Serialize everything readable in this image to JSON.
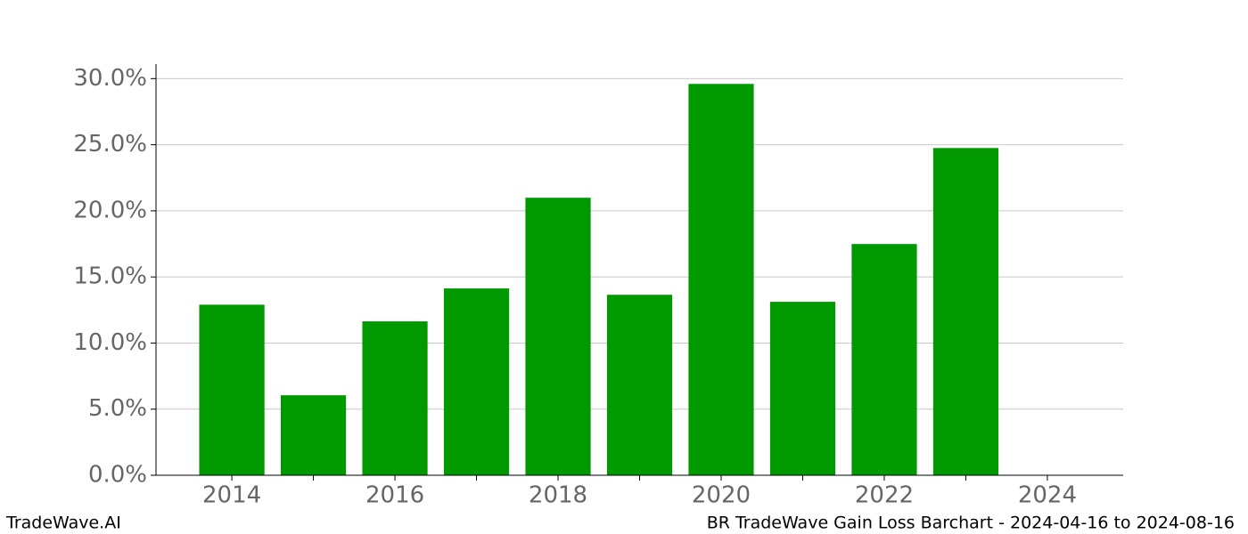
{
  "chart_data": {
    "type": "bar",
    "title": "BR TradeWave Gain Loss Barchart - 2024-04-16 to 2024-08-16",
    "source": "TradeWave.AI",
    "x": [
      2014,
      2015,
      2016,
      2017,
      2018,
      2019,
      2020,
      2021,
      2022,
      2023
    ],
    "values": [
      12.9,
      6.05,
      11.64,
      14.13,
      20.99,
      13.65,
      29.6,
      13.12,
      17.49,
      24.75
    ],
    "color": "#009900",
    "bar_width": 0.8,
    "xlim": [
      2013.07,
      2024.93
    ],
    "xticks": [
      2014,
      2016,
      2018,
      2020,
      2022,
      2024
    ],
    "xminorticks": [
      2015,
      2017,
      2019,
      2021,
      2023
    ],
    "ylim": [
      0,
      31.1
    ],
    "yticks": [
      {
        "value": 0,
        "label": "0.0%"
      },
      {
        "value": 5,
        "label": "5.0%"
      },
      {
        "value": 10,
        "label": "10.0%"
      },
      {
        "value": 15,
        "label": "15.0%"
      },
      {
        "value": 20,
        "label": "20.0%"
      },
      {
        "value": 25,
        "label": "25.0%"
      },
      {
        "value": 30,
        "label": "30.0%"
      }
    ],
    "grid": true
  }
}
